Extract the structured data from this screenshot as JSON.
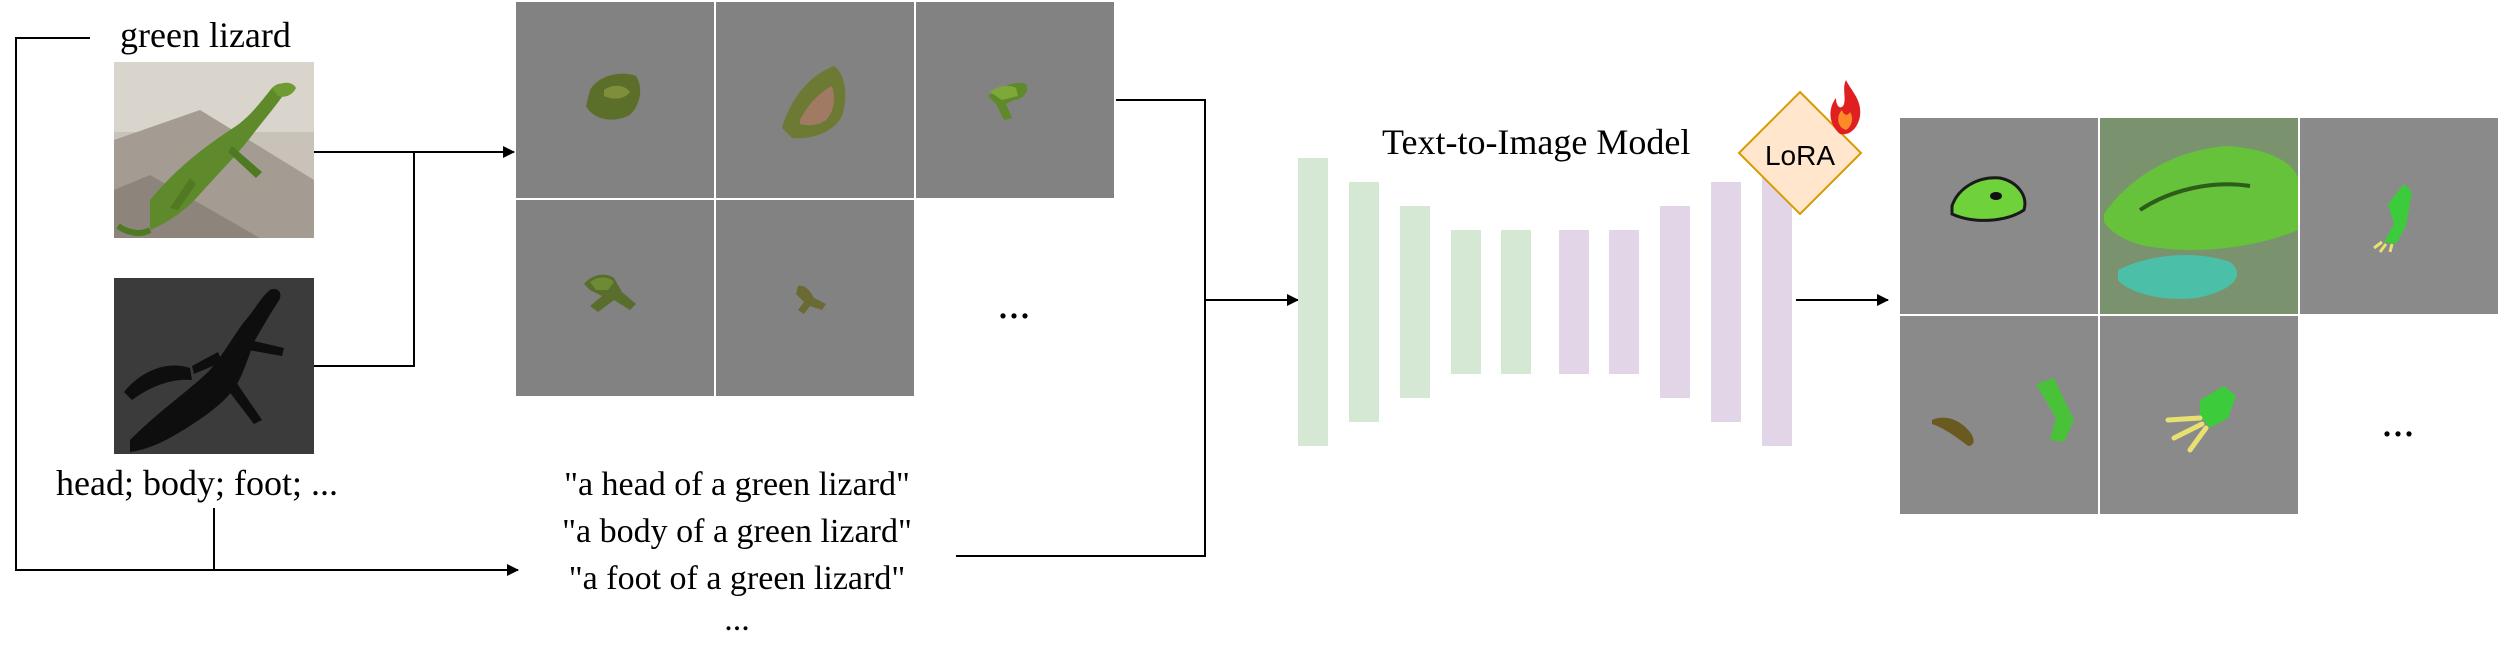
{
  "input": {
    "concept_label": "green lizard",
    "parts_label": "head; body; foot; ..."
  },
  "prompts": [
    "\"a head of a green lizard\"",
    "\"a body of a green lizard\"",
    "\"a foot of a green lizard\"",
    "..."
  ],
  "crops_ellipsis": "...",
  "model": {
    "label": "Text-to-Image Model",
    "adapter_label": "LoRA"
  },
  "outputs_ellipsis": "...",
  "colors": {
    "encoder_bar": "#d5e8d4",
    "decoder_bar": "#e1d5e7",
    "lora_fill": "#ffe6cc",
    "lora_stroke": "#d79b00",
    "tile_gray": "#828282",
    "output_tile_gray": "#8a8a8a",
    "lizard_green": "#5e8a2c",
    "mask_background": "#3b3b3b",
    "flame": "#e02020"
  },
  "icons": [
    "lizard-photo",
    "lizard-mask",
    "fire-icon"
  ]
}
